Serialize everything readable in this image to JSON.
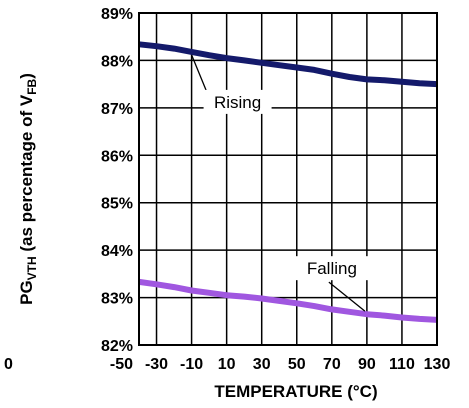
{
  "chart_data": {
    "type": "line",
    "title": "",
    "xlabel": "TEMPERATURE (°C)",
    "ylabel_main": "PG",
    "ylabel_sub": "VTH",
    "ylabel_rest": " (as percentage of V",
    "ylabel_sub2": "FB",
    "ylabel_end": ")",
    "xlim": [
      -40,
      130
    ],
    "ylim": [
      82,
      89
    ],
    "x_ticks": [
      -50,
      -30,
      -10,
      10,
      30,
      50,
      70,
      90,
      110,
      130
    ],
    "x_tick_labels": [
      "-50",
      "-30",
      "-10",
      "10",
      "30",
      "50",
      "70",
      "90",
      "110",
      "130"
    ],
    "y_ticks": [
      82,
      83,
      84,
      85,
      86,
      87,
      88,
      89
    ],
    "y_tick_labels": [
      "82%",
      "83%",
      "84%",
      "85%",
      "86%",
      "87%",
      "88%",
      "89%"
    ],
    "edge_label": "0",
    "grid": true,
    "series": [
      {
        "name": "Rising",
        "color": "#141a6b",
        "x": [
          -40,
          -30,
          -20,
          -10,
          0,
          10,
          20,
          30,
          40,
          50,
          60,
          70,
          80,
          90,
          100,
          110,
          120,
          130
        ],
        "y": [
          88.34,
          88.3,
          88.25,
          88.18,
          88.11,
          88.05,
          88.0,
          87.95,
          87.9,
          87.85,
          87.8,
          87.72,
          87.65,
          87.6,
          87.58,
          87.55,
          87.52,
          87.5
        ]
      },
      {
        "name": "Falling",
        "color": "#a057e0",
        "x": [
          -40,
          -30,
          -20,
          -10,
          0,
          10,
          20,
          30,
          40,
          50,
          60,
          70,
          80,
          90,
          100,
          110,
          120,
          130
        ],
        "y": [
          83.33,
          83.28,
          83.22,
          83.15,
          83.1,
          83.05,
          83.02,
          82.98,
          82.93,
          82.88,
          82.82,
          82.75,
          82.7,
          82.65,
          82.62,
          82.58,
          82.55,
          82.53
        ]
      }
    ],
    "annotations": [
      {
        "text": "Rising",
        "series": 0,
        "x": -10
      },
      {
        "text": "Falling",
        "series": 1,
        "x": 90
      }
    ]
  }
}
